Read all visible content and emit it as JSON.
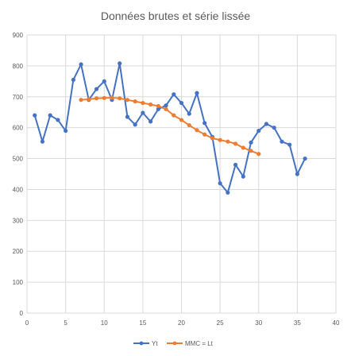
{
  "chart_data": {
    "type": "line",
    "title": "Données brutes et série lissée",
    "xlabel": "",
    "ylabel": "",
    "xlim": [
      0,
      40
    ],
    "ylim": [
      0,
      900
    ],
    "x_ticks": [
      0,
      5,
      10,
      15,
      20,
      25,
      30,
      35,
      40
    ],
    "y_ticks": [
      0,
      100,
      200,
      300,
      400,
      500,
      600,
      700,
      800,
      900
    ],
    "grid": true,
    "legend_position": "bottom",
    "series": [
      {
        "name": "Yt",
        "color": "#4472C4",
        "x": [
          1,
          2,
          3,
          4,
          5,
          6,
          7,
          8,
          9,
          10,
          11,
          12,
          13,
          14,
          15,
          16,
          17,
          18,
          19,
          20,
          21,
          22,
          23,
          24,
          25,
          26,
          27,
          28,
          29,
          30,
          31,
          32,
          33,
          34,
          35,
          36
        ],
        "y": [
          640,
          555,
          640,
          625,
          590,
          755,
          805,
          690,
          725,
          750,
          690,
          808,
          635,
          610,
          648,
          620,
          660,
          672,
          708,
          680,
          645,
          712,
          615,
          570,
          420,
          390,
          480,
          442,
          552,
          590,
          612,
          600,
          555,
          545,
          450,
          500
        ]
      },
      {
        "name": "MMC = Lt",
        "color": "#ED7D31",
        "x": [
          7,
          8,
          9,
          10,
          11,
          12,
          13,
          14,
          15,
          16,
          17,
          18,
          19,
          20,
          21,
          22,
          23,
          24,
          25,
          26,
          27,
          28,
          29,
          30
        ],
        "y": [
          690,
          692,
          695,
          696,
          697,
          695,
          690,
          685,
          680,
          675,
          670,
          660,
          640,
          625,
          608,
          592,
          578,
          566,
          560,
          555,
          548,
          535,
          525,
          515
        ]
      }
    ]
  }
}
